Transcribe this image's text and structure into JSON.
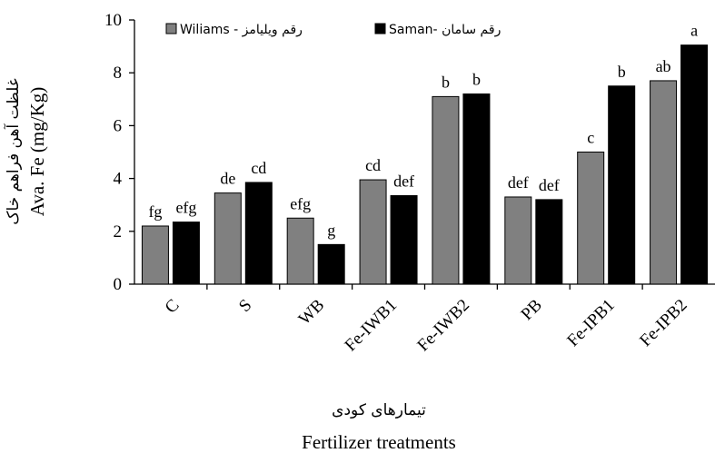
{
  "chart_data": {
    "type": "bar",
    "categories": [
      "C",
      "S",
      "WB",
      "Fe-IWB1",
      "Fe-IWB2",
      "PB",
      "Fe-IPB1",
      "Fe-IPB2"
    ],
    "series": [
      {
        "name": "Wiliams - رقم ویلیامز",
        "color": "#808080",
        "values": [
          2.2,
          3.45,
          2.5,
          3.95,
          7.1,
          3.3,
          5.0,
          7.7
        ],
        "letters": [
          "fg",
          "de",
          "efg",
          "cd",
          "b",
          "def",
          "c",
          "ab"
        ]
      },
      {
        "name": "Saman- رقم سامان",
        "color": "#000000",
        "values": [
          2.35,
          3.85,
          1.5,
          3.35,
          7.2,
          3.2,
          7.5,
          9.05
        ],
        "letters": [
          "efg",
          "cd",
          "g",
          "def",
          "b",
          "def",
          "b",
          "a"
        ]
      }
    ],
    "ylabel_fa": "غلظت آهن فراهم خاک",
    "ylabel": "Ava. Fe (mg/Kg)",
    "xlabel_fa": "تیمارهای کودی",
    "xlabel": "Fertilizer treatments",
    "yticks": [
      "0",
      "2",
      "4",
      "6",
      "8",
      "10"
    ],
    "ylim": [
      0,
      10
    ],
    "legend_position": "top",
    "grid": false
  }
}
